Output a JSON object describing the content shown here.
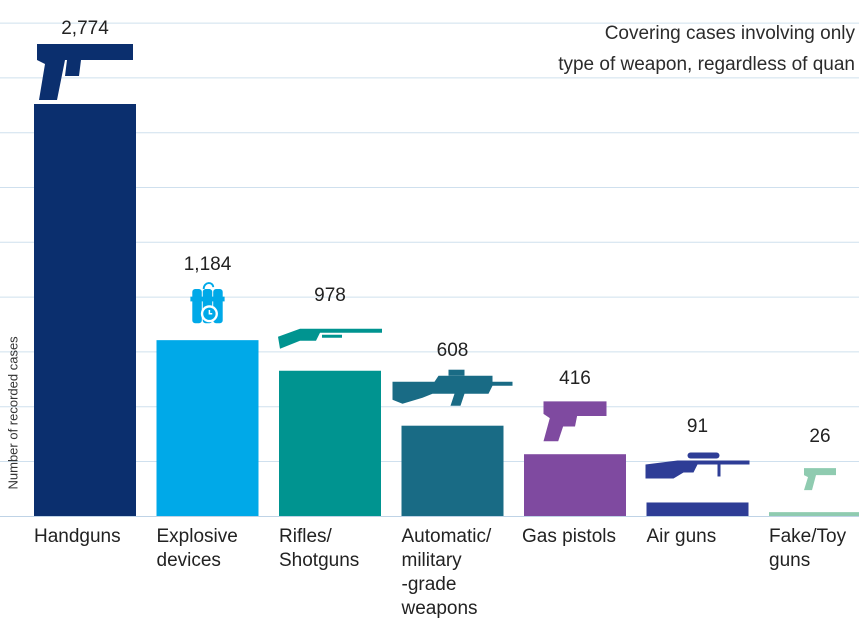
{
  "note": {
    "line1": "Covering cases involving only",
    "line2": "type of weapon, regardless of quan"
  },
  "chart_data": {
    "type": "bar",
    "categories": [
      "Handguns",
      "Explosive devices",
      "Rifles/ Shotguns",
      "Automatic/ military -grade weapons",
      "Gas pistols",
      "Air guns",
      "Fake/Toy guns"
    ],
    "category_labels": [
      "Handguns",
      "Explosive\ndevices",
      "Rifles/\nShotguns",
      "Automatic/\nmilitary\n-grade\nweapons",
      "Gas pistols",
      "Air guns",
      "Fake/Toy\nguns"
    ],
    "values": [
      2774,
      1184,
      978,
      608,
      416,
      91,
      26
    ],
    "value_labels": [
      "2,774",
      "1,184",
      "978",
      "608",
      "416",
      "91",
      "26"
    ],
    "colors": [
      "#0b2f6e",
      "#00a9e8",
      "#009490",
      "#196b85",
      "#7f4aa0",
      "#2e3d96",
      "#8fcbb0"
    ],
    "icons": [
      "handgun-icon",
      "explosive-device-icon",
      "rifle-icon",
      "automatic-weapon-icon",
      "gas-pistol-icon",
      "air-gun-icon",
      "toy-gun-icon"
    ],
    "ylabel": "Number of recorded cases",
    "xlabel": "",
    "title": "",
    "ylim": [
      0,
      2774
    ],
    "grid": true
  }
}
